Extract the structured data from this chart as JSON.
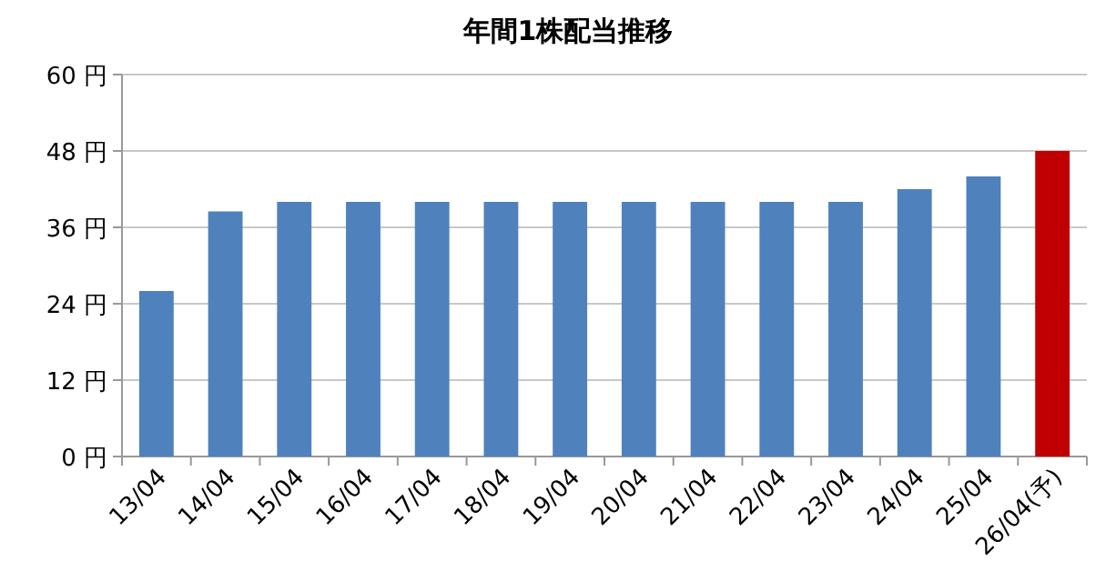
{
  "chart_data": {
    "type": "bar",
    "title": "年間1株配当推移",
    "categories": [
      "13/04",
      "14/04",
      "15/04",
      "16/04",
      "17/04",
      "18/04",
      "19/04",
      "20/04",
      "21/04",
      "22/04",
      "23/04",
      "24/04",
      "25/04",
      "26/04(予)"
    ],
    "values": [
      26,
      38.5,
      40,
      40,
      40,
      40,
      40,
      40,
      40,
      40,
      40,
      42,
      44,
      48
    ],
    "colors": [
      "#4f81bd",
      "#4f81bd",
      "#4f81bd",
      "#4f81bd",
      "#4f81bd",
      "#4f81bd",
      "#4f81bd",
      "#4f81bd",
      "#4f81bd",
      "#4f81bd",
      "#4f81bd",
      "#4f81bd",
      "#4f81bd",
      "#c00000"
    ],
    "ylim": [
      0,
      60
    ],
    "yticks": [
      {
        "value": 0,
        "label": "0 円"
      },
      {
        "value": 12,
        "label": "12 円"
      },
      {
        "value": 24,
        "label": "24 円"
      },
      {
        "value": 36,
        "label": "36 円"
      },
      {
        "value": 48,
        "label": "48 円"
      },
      {
        "value": 60,
        "label": "60 円"
      }
    ],
    "grid": "y"
  }
}
